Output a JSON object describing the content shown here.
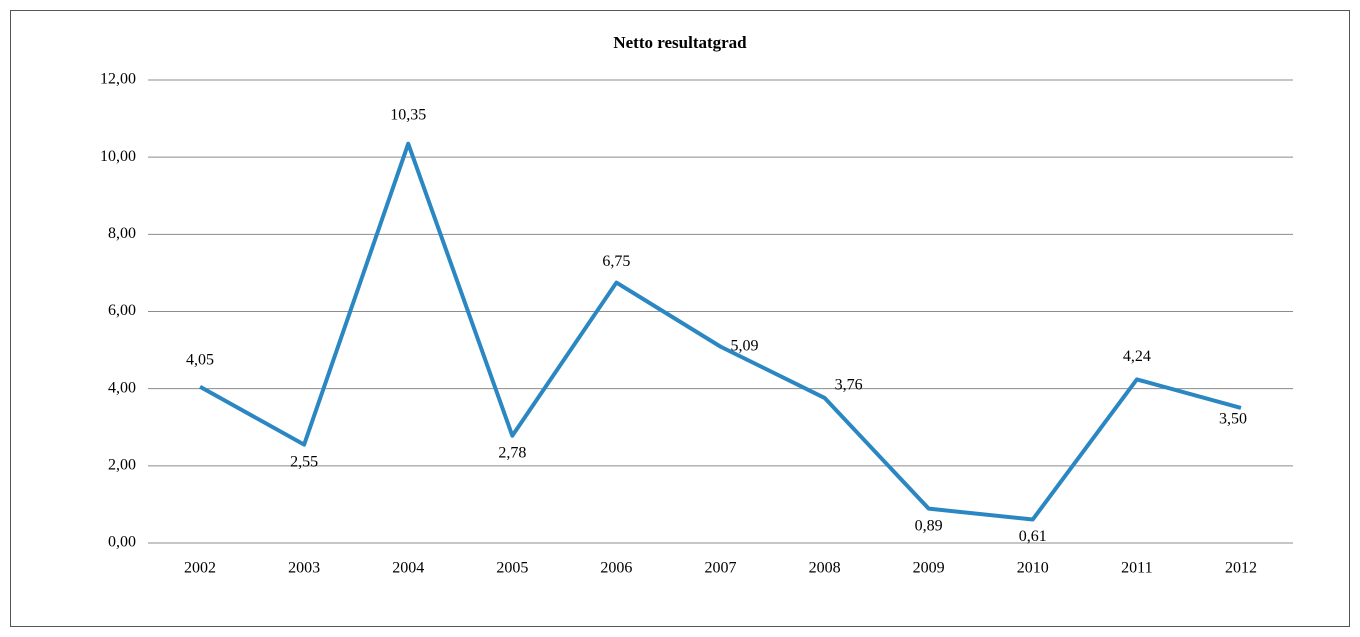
{
  "chart_data": {
    "type": "line",
    "title": "Netto resultatgrad",
    "categories": [
      "2002",
      "2003",
      "2004",
      "2005",
      "2006",
      "2007",
      "2008",
      "2009",
      "2010",
      "2011",
      "2012"
    ],
    "series": [
      {
        "color": "#2b87c2",
        "values": [
          4.05,
          2.55,
          10.35,
          2.78,
          6.75,
          5.09,
          3.76,
          0.89,
          0.61,
          4.24,
          3.5
        ],
        "value_labels": [
          "4,05",
          "2,55",
          "10,35",
          "2,78",
          "6,75",
          "5,09",
          "3,76",
          "0,89",
          "0,61",
          "4,24",
          "3,50"
        ]
      }
    ],
    "ylim": [
      0,
      12
    ],
    "yticks": [
      {
        "value": 0,
        "label": "0,00"
      },
      {
        "value": 2,
        "label": "2,00"
      },
      {
        "value": 4,
        "label": "4,00"
      },
      {
        "value": 6,
        "label": "6,00"
      },
      {
        "value": 8,
        "label": "8,00"
      },
      {
        "value": 10,
        "label": "10,00"
      },
      {
        "value": 12,
        "label": "12,00"
      }
    ],
    "grid": true
  }
}
